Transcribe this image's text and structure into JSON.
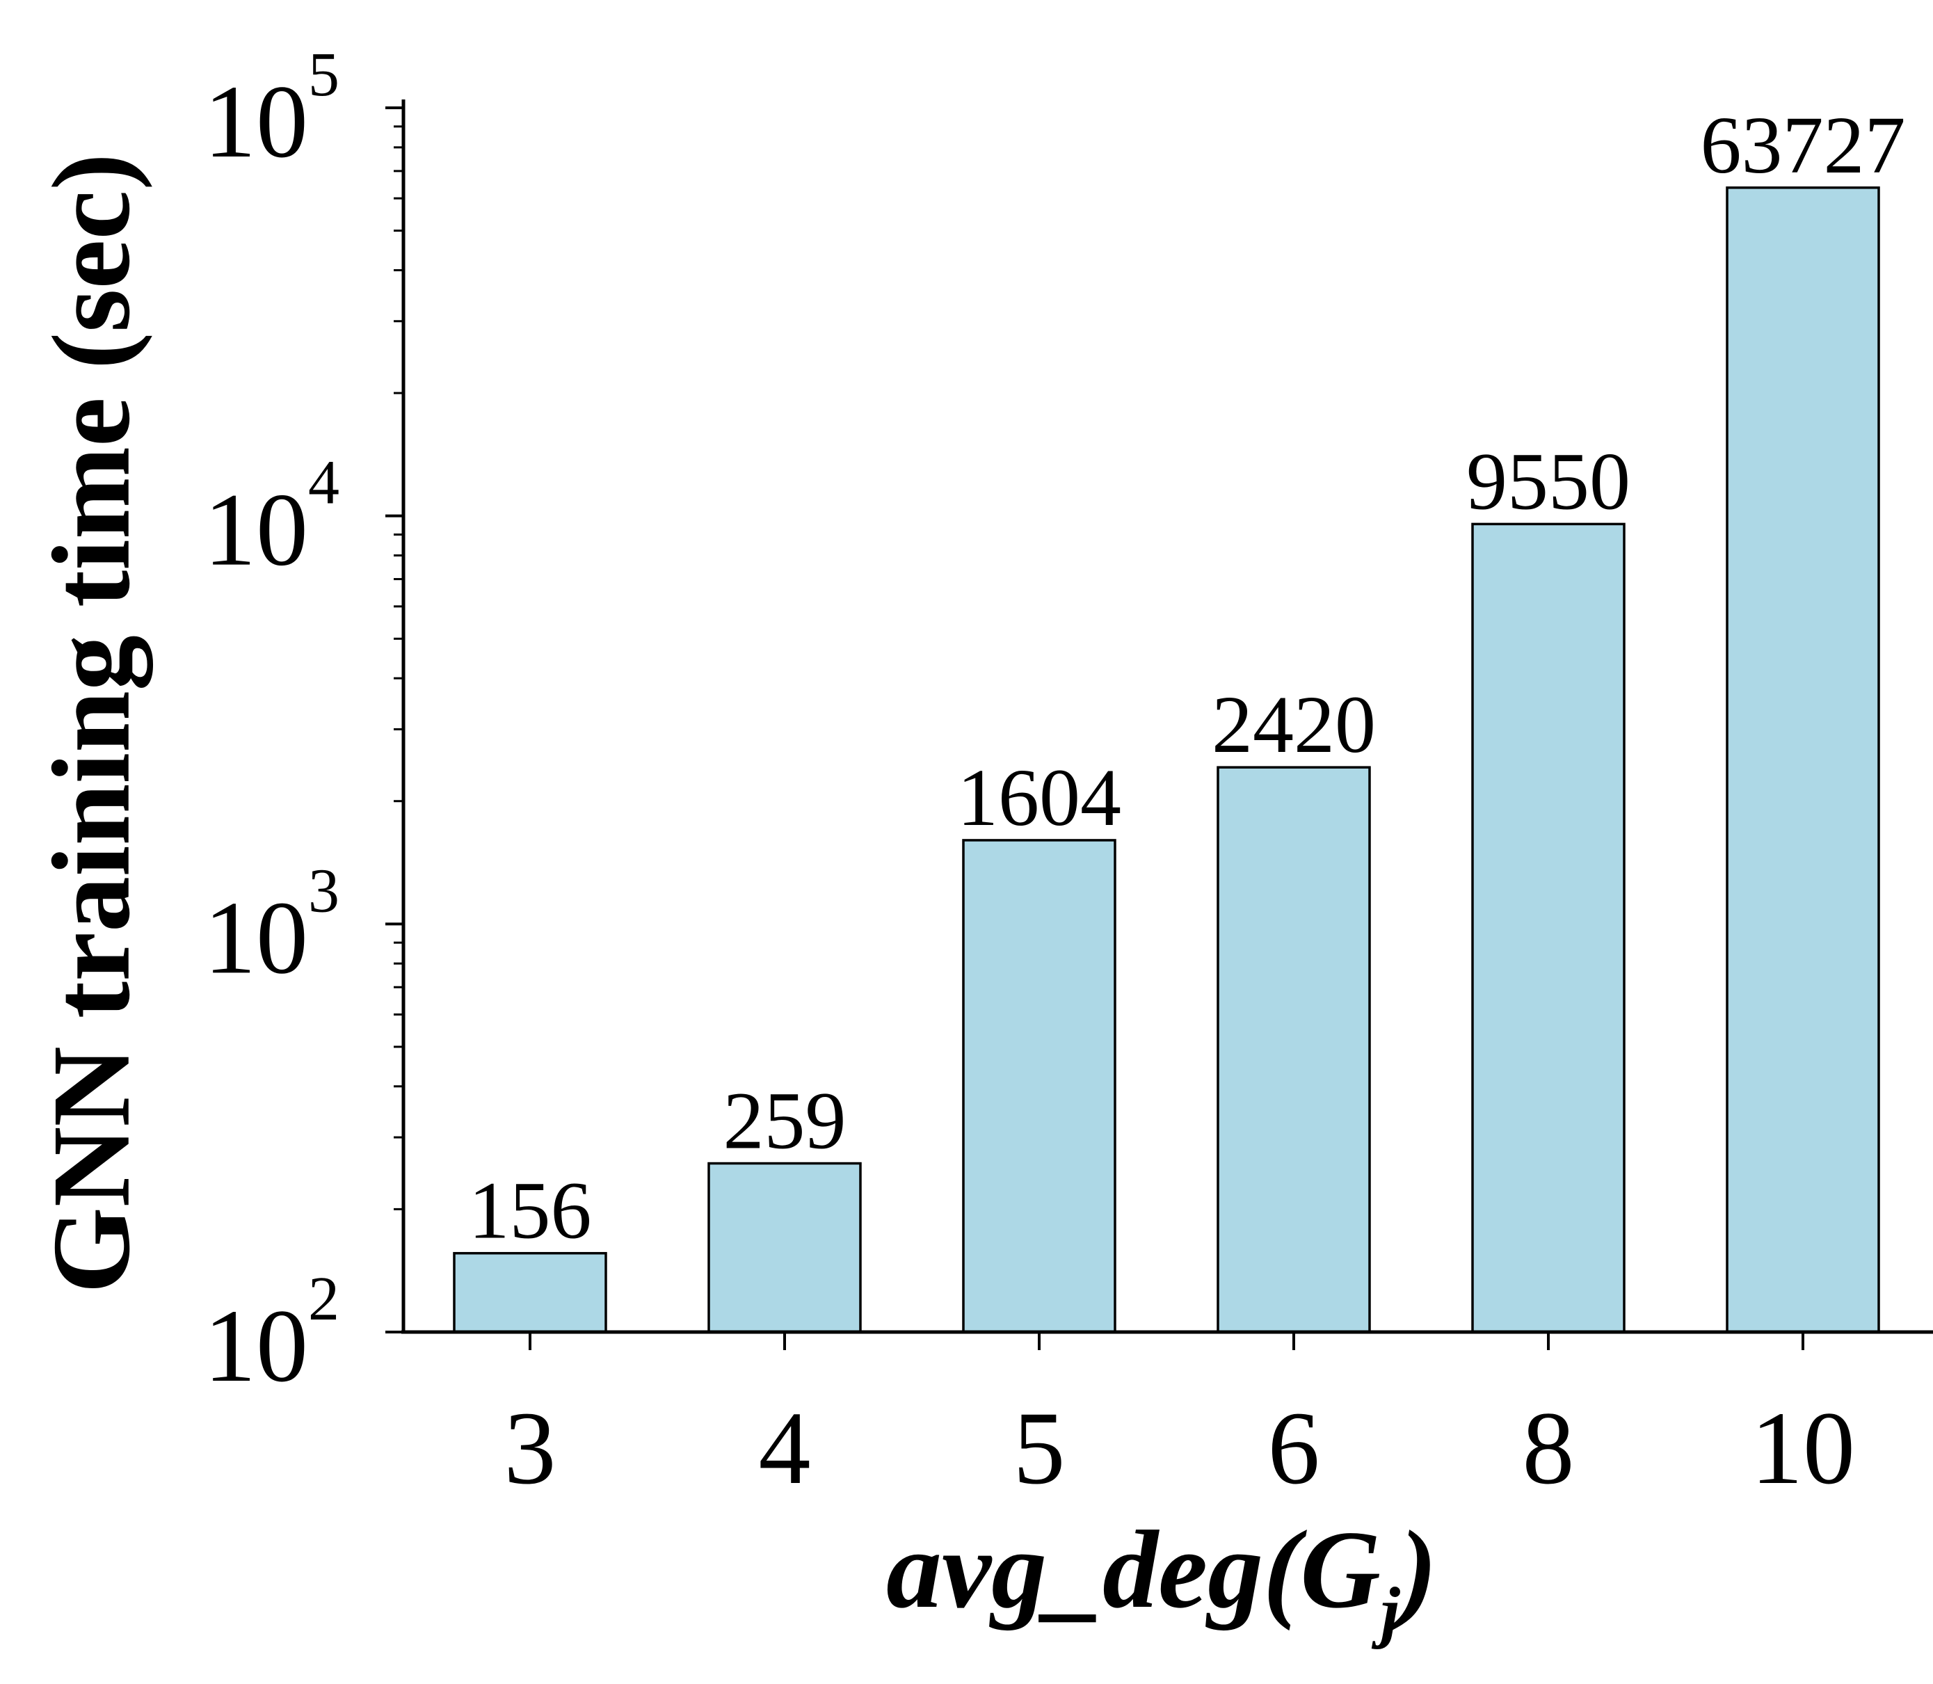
{
  "chart_data": {
    "type": "bar",
    "categories": [
      "3",
      "4",
      "5",
      "6",
      "8",
      "10"
    ],
    "values": [
      156,
      259,
      1604,
      2420,
      9550,
      63727
    ],
    "data_labels": [
      "156",
      "259",
      "1604",
      "2420",
      "9550",
      "63727"
    ],
    "xlabel": {
      "main": "avg_deg(G",
      "subscript": "j",
      "close": ")"
    },
    "ylabel": "GNN training time (sec)",
    "y_scale": "log",
    "ylim": [
      100,
      100000
    ],
    "y_ticks": [
      {
        "value": 100,
        "base": "10",
        "exp": "2"
      },
      {
        "value": 1000,
        "base": "10",
        "exp": "3"
      },
      {
        "value": 10000,
        "base": "10",
        "exp": "4"
      },
      {
        "value": 100000,
        "base": "10",
        "exp": "5"
      }
    ],
    "grid": false,
    "colors": {
      "bar_fill": "#add8e6",
      "bar_stroke": "#000000",
      "axis": "#000000",
      "text": "#000000"
    }
  }
}
